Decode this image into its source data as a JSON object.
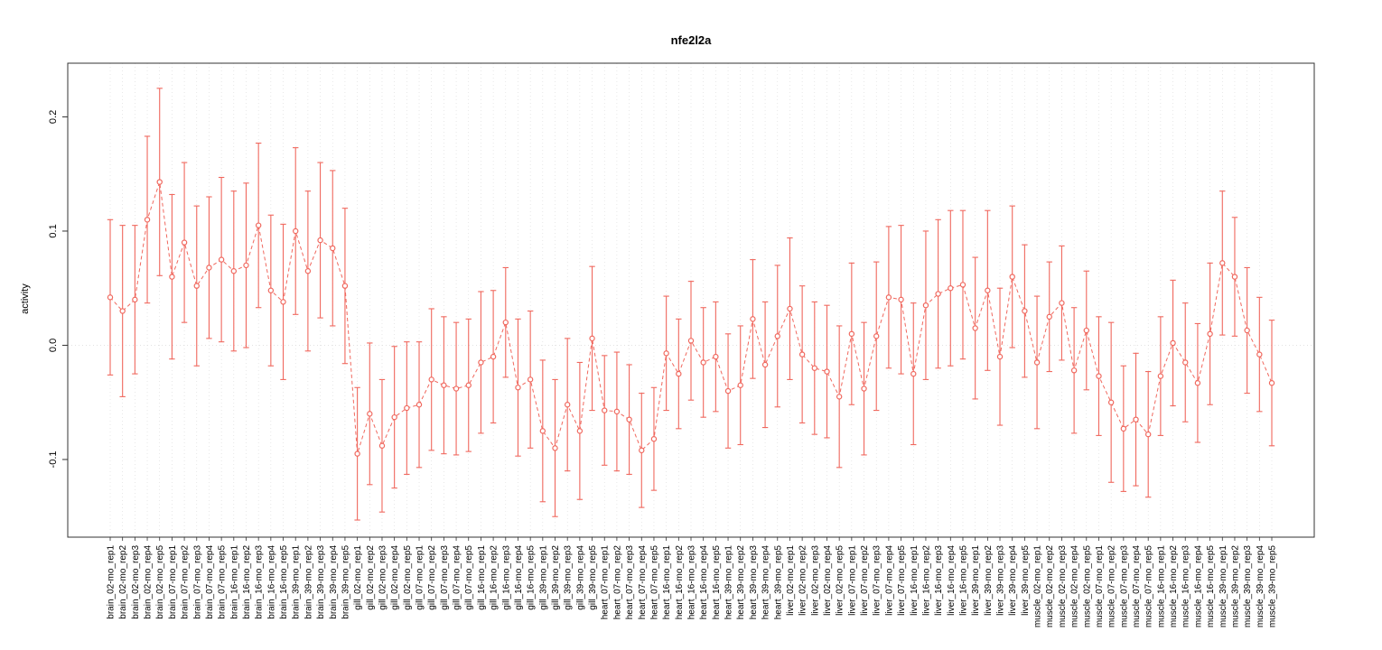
{
  "chart_data": {
    "type": "scatter",
    "title": "nfe2l2a",
    "xlabel": "",
    "ylabel": "activity",
    "ylim": [
      -0.168,
      0.247
    ],
    "yticks": [
      -0.1,
      0.0,
      0.1,
      0.2
    ],
    "ytick_labels": [
      "-0.1",
      "0.0",
      "0.1",
      "0.2"
    ],
    "grid": "vertical-dotted-per-category-and-horizontal-dotted-at-zero",
    "legend": "none",
    "series_color": "#f0685e",
    "grid_color": "#d9d9d9",
    "axis_color": "#333333",
    "point_style": "open-circle",
    "line_style": "dashed",
    "error_bars": true,
    "categories": [
      "brain_02-mo_rep1",
      "brain_02-mo_rep2",
      "brain_02-mo_rep3",
      "brain_02-mo_rep4",
      "brain_02-mo_rep5",
      "brain_07-mo_rep1",
      "brain_07-mo_rep2",
      "brain_07-mo_rep3",
      "brain_07-mo_rep4",
      "brain_07-mo_rep5",
      "brain_16-mo_rep1",
      "brain_16-mo_rep2",
      "brain_16-mo_rep3",
      "brain_16-mo_rep4",
      "brain_16-mo_rep5",
      "brain_39-mo_rep1",
      "brain_39-mo_rep2",
      "brain_39-mo_rep3",
      "brain_39-mo_rep4",
      "brain_39-mo_rep5",
      "gill_02-mo_rep1",
      "gill_02-mo_rep2",
      "gill_02-mo_rep3",
      "gill_02-mo_rep4",
      "gill_02-mo_rep5",
      "gill_07-mo_rep1",
      "gill_07-mo_rep2",
      "gill_07-mo_rep3",
      "gill_07-mo_rep4",
      "gill_07-mo_rep5",
      "gill_16-mo_rep1",
      "gill_16-mo_rep2",
      "gill_16-mo_rep3",
      "gill_16-mo_rep4",
      "gill_16-mo_rep5",
      "gill_39-mo_rep1",
      "gill_39-mo_rep2",
      "gill_39-mo_rep3",
      "gill_39-mo_rep4",
      "gill_39-mo_rep5",
      "heart_07-mo_rep1",
      "heart_07-mo_rep2",
      "heart_07-mo_rep3",
      "heart_07-mo_rep4",
      "heart_07-mo_rep5",
      "heart_16-mo_rep1",
      "heart_16-mo_rep2",
      "heart_16-mo_rep3",
      "heart_16-mo_rep4",
      "heart_16-mo_rep5",
      "heart_39-mo_rep1",
      "heart_39-mo_rep2",
      "heart_39-mo_rep3",
      "heart_39-mo_rep4",
      "heart_39-mo_rep5",
      "liver_02-mo_rep1",
      "liver_02-mo_rep2",
      "liver_02-mo_rep3",
      "liver_02-mo_rep4",
      "liver_02-mo_rep5",
      "liver_07-mo_rep1",
      "liver_07-mo_rep2",
      "liver_07-mo_rep3",
      "liver_07-mo_rep4",
      "liver_07-mo_rep5",
      "liver_16-mo_rep1",
      "liver_16-mo_rep2",
      "liver_16-mo_rep3",
      "liver_16-mo_rep4",
      "liver_16-mo_rep5",
      "liver_39-mo_rep1",
      "liver_39-mo_rep2",
      "liver_39-mo_rep3",
      "liver_39-mo_rep4",
      "liver_39-mo_rep5",
      "muscle_02-mo_rep1",
      "muscle_02-mo_rep2",
      "muscle_02-mo_rep3",
      "muscle_02-mo_rep4",
      "muscle_02-mo_rep5",
      "muscle_07-mo_rep1",
      "muscle_07-mo_rep2",
      "muscle_07-mo_rep3",
      "muscle_07-mo_rep4",
      "muscle_07-mo_rep5",
      "muscle_16-mo_rep1",
      "muscle_16-mo_rep2",
      "muscle_16-mo_rep3",
      "muscle_16-mo_rep4",
      "muscle_16-mo_rep5",
      "muscle_39-mo_rep1",
      "muscle_39-mo_rep2",
      "muscle_39-mo_rep3",
      "muscle_39-mo_rep4",
      "muscle_39-mo_rep5"
    ],
    "values": [
      0.042,
      0.03,
      0.04,
      0.11,
      0.143,
      0.06,
      0.09,
      0.052,
      0.068,
      0.075,
      0.065,
      0.07,
      0.105,
      0.048,
      0.038,
      0.1,
      0.065,
      0.092,
      0.085,
      0.052,
      -0.095,
      -0.06,
      -0.088,
      -0.063,
      -0.055,
      -0.052,
      -0.03,
      -0.035,
      -0.038,
      -0.035,
      -0.015,
      -0.01,
      0.02,
      -0.037,
      -0.03,
      -0.075,
      -0.09,
      -0.052,
      -0.075,
      0.006,
      -0.057,
      -0.058,
      -0.065,
      -0.092,
      -0.082,
      -0.007,
      -0.025,
      0.004,
      -0.015,
      -0.01,
      -0.04,
      -0.035,
      0.023,
      -0.017,
      0.008,
      0.032,
      -0.008,
      -0.02,
      -0.023,
      -0.045,
      0.01,
      -0.038,
      0.008,
      0.042,
      0.04,
      -0.025,
      0.035,
      0.045,
      0.05,
      0.053,
      0.015,
      0.048,
      -0.01,
      0.06,
      0.03,
      -0.015,
      0.025,
      0.037,
      -0.022,
      0.013,
      -0.027,
      -0.05,
      -0.073,
      -0.065,
      -0.078,
      -0.027,
      0.002,
      -0.015,
      -0.033,
      0.01,
      0.072,
      0.06,
      0.013,
      -0.008,
      -0.033
    ],
    "errors": [
      0.068,
      0.075,
      0.065,
      0.073,
      0.082,
      0.072,
      0.07,
      0.07,
      0.062,
      0.072,
      0.07,
      0.072,
      0.072,
      0.066,
      0.068,
      0.073,
      0.07,
      0.068,
      0.068,
      0.068,
      0.058,
      0.062,
      0.058,
      0.062,
      0.058,
      0.055,
      0.062,
      0.06,
      0.058,
      0.058,
      0.062,
      0.058,
      0.048,
      0.06,
      0.06,
      0.062,
      0.06,
      0.058,
      0.06,
      0.063,
      0.048,
      0.052,
      0.048,
      0.05,
      0.045,
      0.05,
      0.048,
      0.052,
      0.048,
      0.048,
      0.05,
      0.052,
      0.052,
      0.055,
      0.062,
      0.062,
      0.06,
      0.058,
      0.058,
      0.062,
      0.062,
      0.058,
      0.065,
      0.062,
      0.065,
      0.062,
      0.065,
      0.065,
      0.068,
      0.065,
      0.062,
      0.07,
      0.06,
      0.062,
      0.058,
      0.058,
      0.048,
      0.05,
      0.055,
      0.052,
      0.052,
      0.07,
      0.055,
      0.058,
      0.055,
      0.052,
      0.055,
      0.052,
      0.052,
      0.062,
      0.063,
      0.052,
      0.055,
      0.05,
      0.055
    ]
  }
}
